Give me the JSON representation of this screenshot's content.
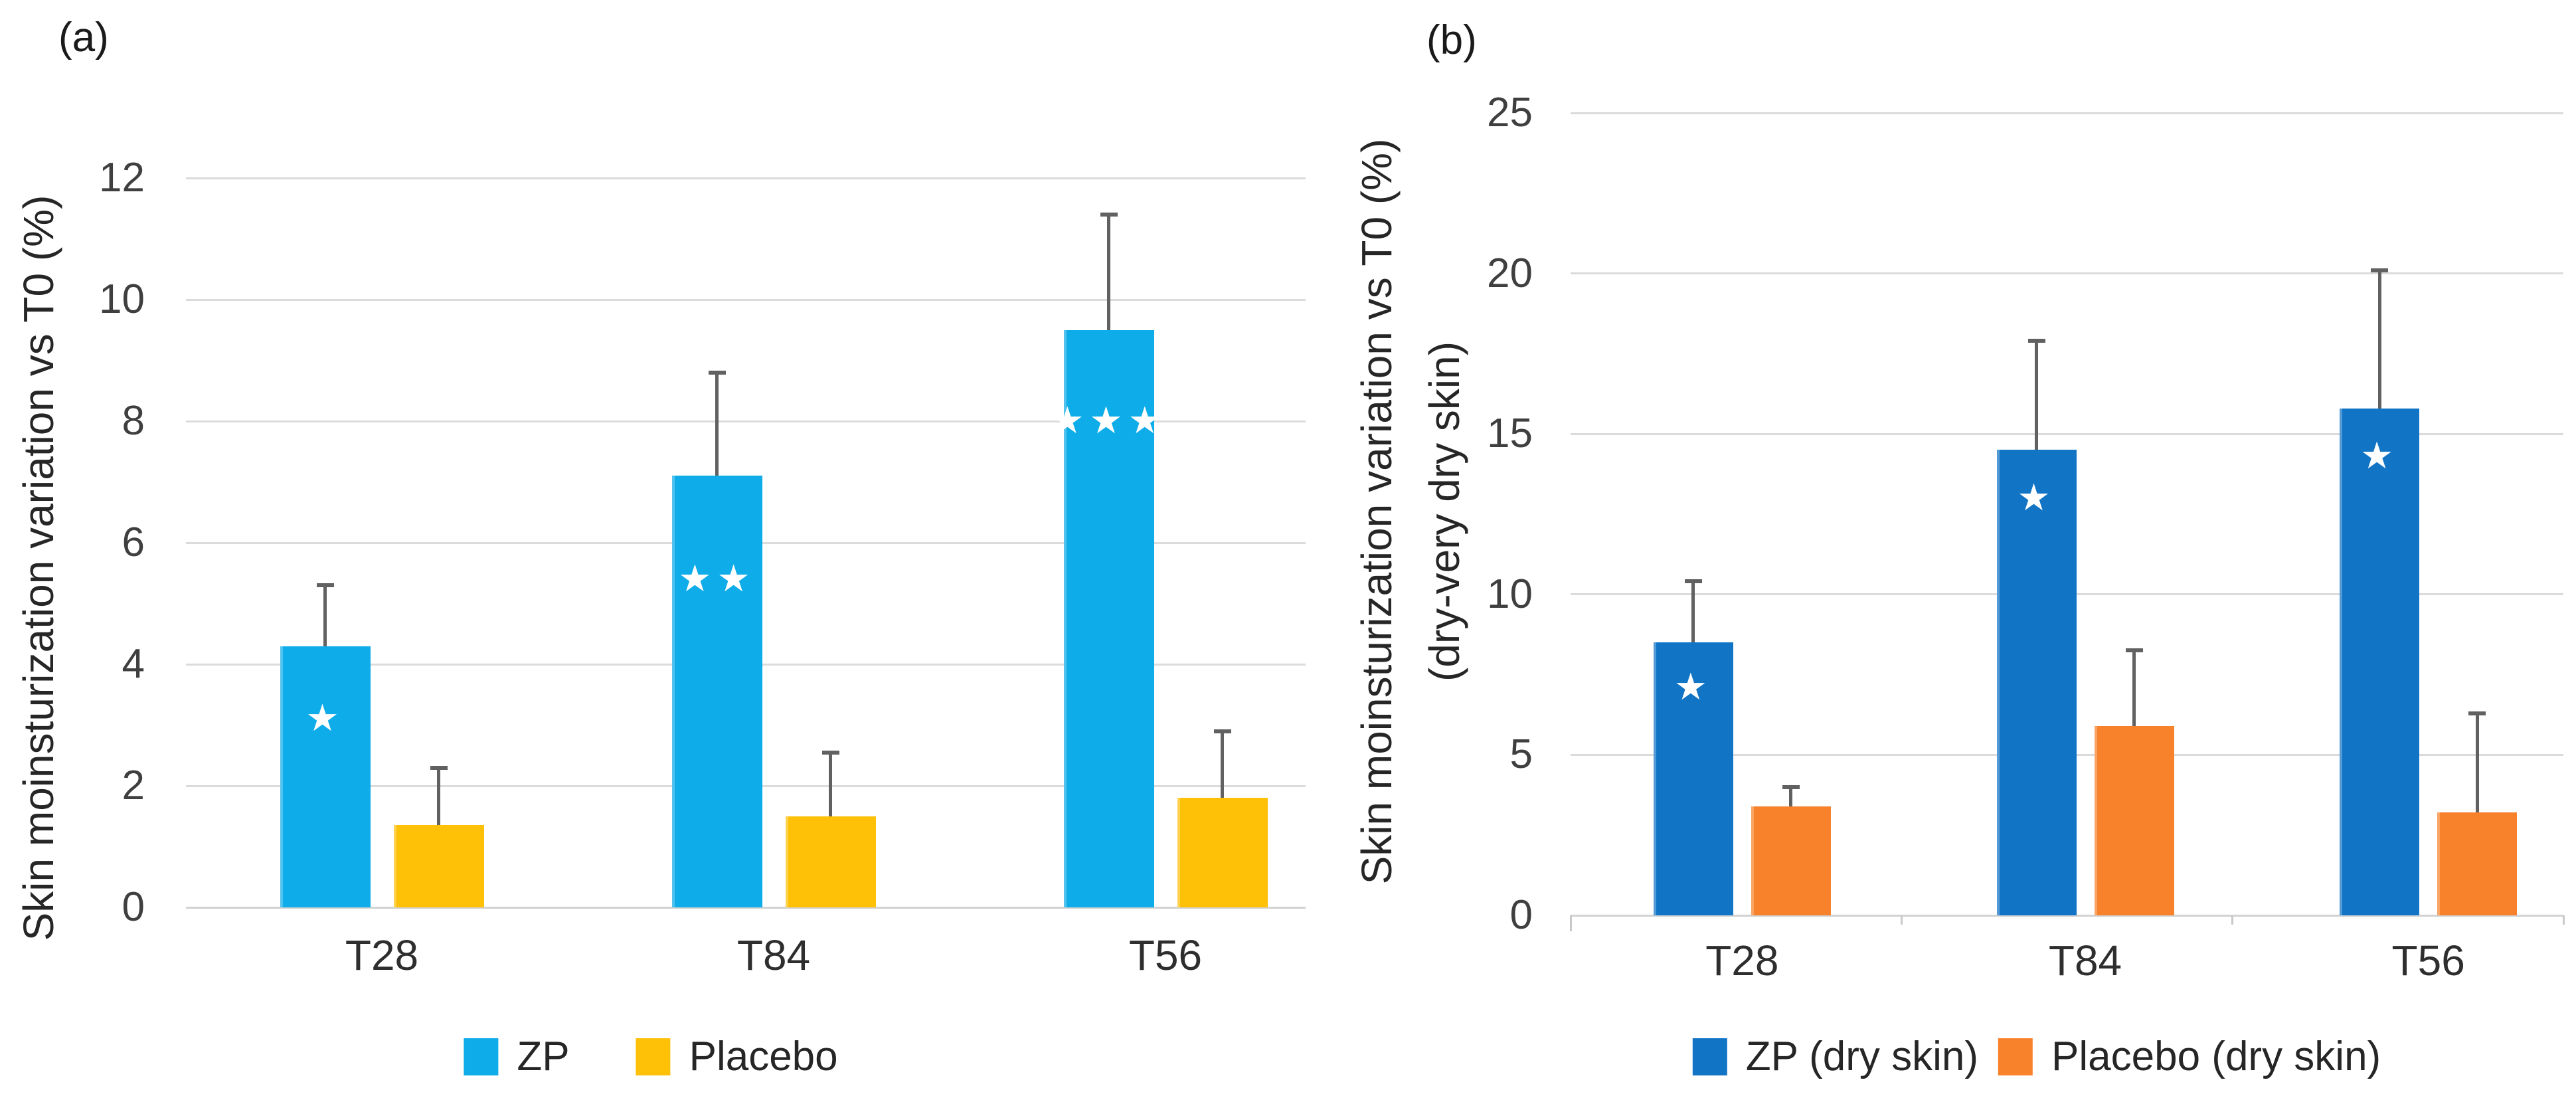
{
  "figure_background": "#ffffff",
  "error_bar_color": "#616161",
  "gridline_color": "#dbdbdb",
  "annotation_color": "#ffffff",
  "chart_data": [
    {
      "type": "bar",
      "panel_label": "(a)",
      "title": "",
      "xlabel": "",
      "ylabel_lines": [
        "Skin moinsturization variation vs T0 (%)"
      ],
      "categories": [
        "T28",
        "T84",
        "T56"
      ],
      "ylim": [
        0,
        12
      ],
      "yticks": [
        0,
        2,
        4,
        6,
        8,
        10,
        12
      ],
      "grid": true,
      "legend_position": "bottom",
      "error_bars": "plus_only",
      "series": [
        {
          "name": "ZP",
          "color": "#0eace8",
          "values": [
            4.3,
            7.1,
            9.5
          ],
          "error_plus": [
            1.0,
            1.7,
            1.9
          ],
          "annotations": [
            "*",
            "**",
            "***"
          ],
          "annotation_y": [
            3.1,
            5.4,
            8.0
          ]
        },
        {
          "name": "Placebo",
          "color": "#ffc008",
          "values": [
            1.35,
            1.5,
            1.8
          ],
          "error_plus": [
            0.95,
            1.05,
            1.1
          ],
          "annotations": [
            "",
            "",
            ""
          ],
          "annotation_y": [
            null,
            null,
            null
          ]
        }
      ]
    },
    {
      "type": "bar",
      "panel_label": "(b)",
      "title": "",
      "xlabel": "",
      "ylabel_lines": [
        "Skin moinsturization variation vs T0 (%)",
        "(dry-very dry skin)"
      ],
      "categories": [
        "T28",
        "T84",
        "T56"
      ],
      "ylim": [
        0,
        25
      ],
      "yticks": [
        0,
        5,
        10,
        15,
        20,
        25
      ],
      "grid": true,
      "legend_position": "bottom",
      "error_bars": "plus_only",
      "series": [
        {
          "name": "ZP (dry skin)",
          "color": "#1274c5",
          "values": [
            8.5,
            14.5,
            15.8
          ],
          "error_plus": [
            1.9,
            3.4,
            4.3
          ],
          "annotations": [
            "*",
            "*",
            "*"
          ],
          "annotation_y": [
            7.1,
            13.0,
            14.3
          ]
        },
        {
          "name": "Placebo (dry skin)",
          "color": "#f8812c",
          "values": [
            3.4,
            5.9,
            3.2
          ],
          "error_plus": [
            0.6,
            2.35,
            3.1
          ],
          "annotations": [
            "",
            "",
            ""
          ],
          "annotation_y": [
            null,
            null,
            null
          ]
        }
      ]
    }
  ]
}
